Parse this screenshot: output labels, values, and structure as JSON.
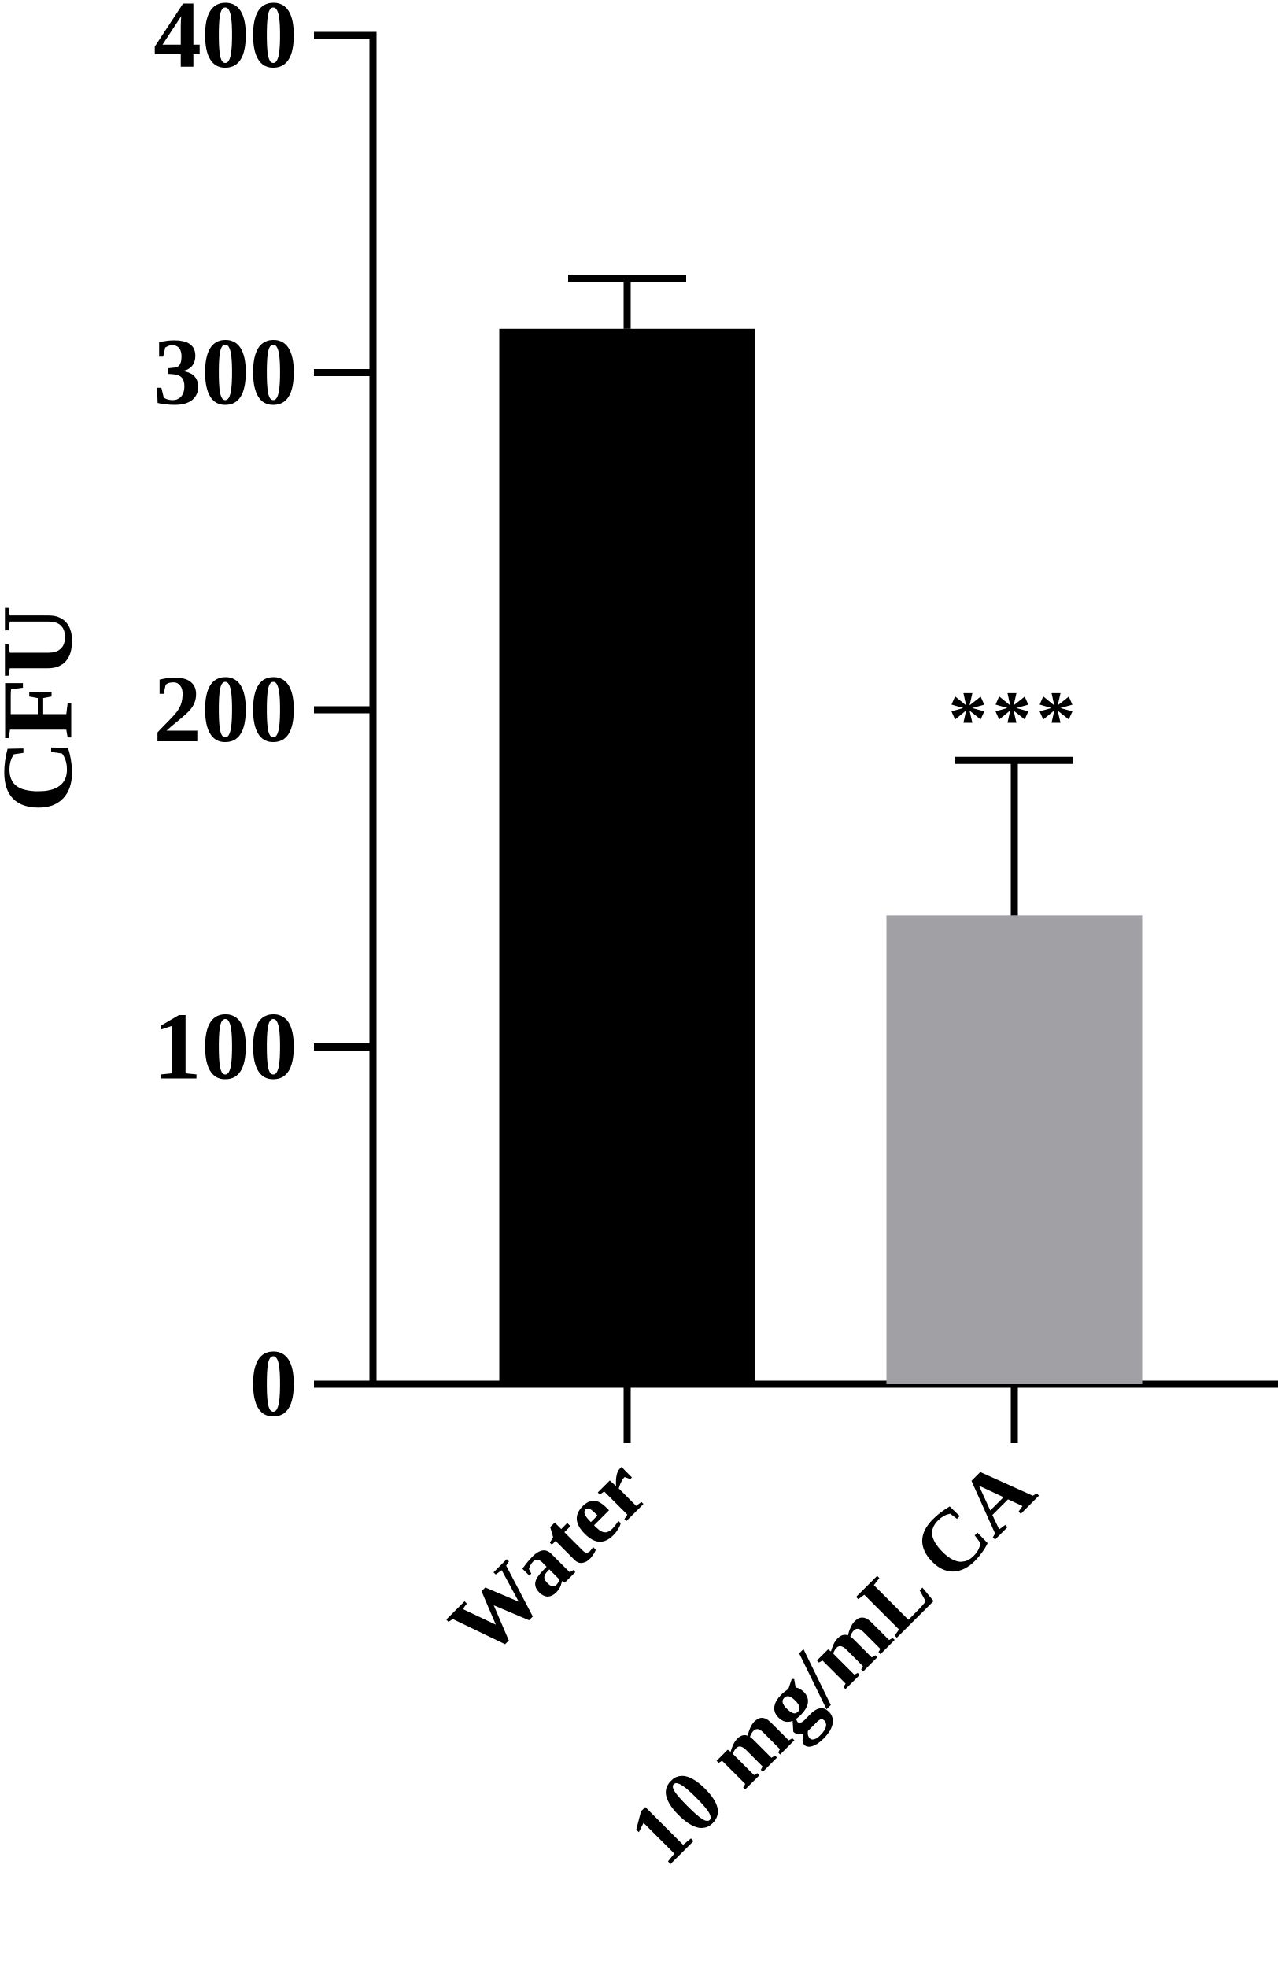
{
  "chart_data": {
    "type": "bar",
    "y_label": "CFU",
    "categories": [
      "Water",
      "10 mg/mL CA"
    ],
    "values": [
      313,
      139
    ],
    "errors": [
      15,
      46
    ],
    "colors": [
      "#000000",
      "#a0a0a5"
    ],
    "annotations": [
      {
        "category": 1,
        "text": "***"
      }
    ],
    "ylim": [
      0,
      400
    ],
    "yticks": [
      0,
      100,
      200,
      300,
      400
    ],
    "grid": false
  }
}
